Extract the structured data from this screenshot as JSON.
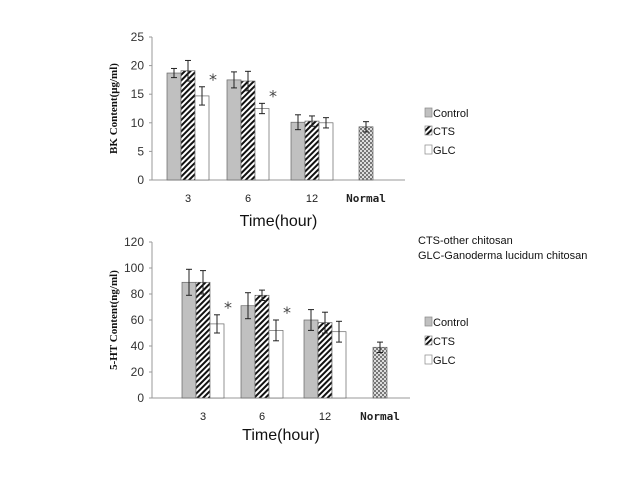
{
  "notes": [
    "CTS-other chitosan",
    "GLC-Ganoderma lucidum chitosan"
  ],
  "colors": {
    "control": "#c0c0c0",
    "cts_pattern": "diagonal-hatch black",
    "glc": "#ffffff",
    "normal_pattern": "crosshatch grey",
    "axis": "#999999"
  },
  "chart_data": [
    {
      "type": "bar",
      "ylabel": "BK Content(μg/ml)",
      "xlabel": "Time(hour)",
      "categories": [
        "3",
        "6",
        "12",
        "Normal"
      ],
      "ylim": [
        0,
        25
      ],
      "yticks": [
        0,
        5,
        10,
        15,
        20,
        25
      ],
      "grid": false,
      "legend_position": "right",
      "series": [
        {
          "name": "Control",
          "values": [
            18.7,
            17.5,
            10.1,
            null
          ],
          "errors": [
            0.8,
            1.4,
            1.3,
            null
          ]
        },
        {
          "name": "CTS",
          "values": [
            19.1,
            17.3,
            10.3,
            null
          ],
          "errors": [
            1.8,
            1.7,
            0.9,
            null
          ]
        },
        {
          "name": "GLC",
          "values": [
            14.7,
            12.5,
            10.0,
            null
          ],
          "errors": [
            1.6,
            0.9,
            0.9,
            null
          ]
        }
      ],
      "normal": {
        "value": 9.3,
        "error": 0.9
      },
      "significance_marks": [
        {
          "category": "3",
          "series": "GLC",
          "label": "*"
        },
        {
          "category": "6",
          "series": "GLC",
          "label": "*"
        }
      ]
    },
    {
      "type": "bar",
      "ylabel": "5-HT Content(ng/ml)",
      "xlabel": "Time(hour)",
      "categories": [
        "3",
        "6",
        "12",
        "Normal"
      ],
      "ylim": [
        0,
        120
      ],
      "yticks": [
        0,
        20,
        40,
        60,
        80,
        100,
        120
      ],
      "grid": false,
      "legend_position": "right",
      "series": [
        {
          "name": "Control",
          "values": [
            89,
            71,
            60,
            null
          ],
          "errors": [
            10,
            10,
            8,
            null
          ]
        },
        {
          "name": "CTS",
          "values": [
            89,
            79,
            58,
            null
          ],
          "errors": [
            9,
            4,
            8,
            null
          ]
        },
        {
          "name": "GLC",
          "values": [
            57,
            52,
            51,
            null
          ],
          "errors": [
            7,
            8,
            8,
            null
          ]
        }
      ],
      "normal": {
        "value": 39,
        "error": 4
      },
      "significance_marks": [
        {
          "category": "3",
          "series": "GLC",
          "label": "*"
        },
        {
          "category": "6",
          "series": "GLC",
          "label": "*"
        }
      ]
    }
  ]
}
